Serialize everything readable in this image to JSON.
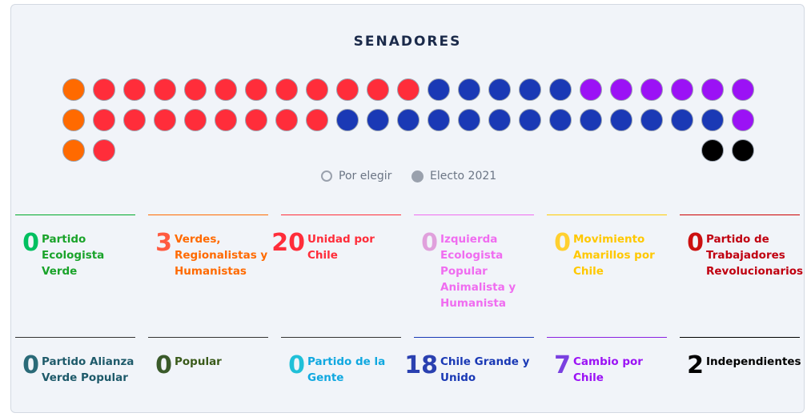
{
  "title": "SENADORES",
  "legend": {
    "pending": "Por elegir",
    "elected": "Electo 2021"
  },
  "seat_rows": [
    [
      [
        "orange",
        1
      ],
      [
        "red",
        11
      ],
      [
        "blue",
        5
      ],
      [
        "purple",
        6
      ]
    ],
    [
      [
        "orange",
        1
      ],
      [
        "red",
        8
      ],
      [
        "blue",
        13
      ],
      [
        "purple",
        1
      ]
    ],
    [
      [
        "orange",
        1
      ],
      [
        "red",
        1
      ],
      [
        "gap",
        19
      ],
      [
        "black",
        2
      ]
    ]
  ],
  "colors": {
    "orange": "#ff6a00",
    "red": "#ff2d3a",
    "blue": "#1a39b5",
    "purple": "#9b12f5",
    "black": "#000000"
  },
  "parties": [
    {
      "count": "0",
      "name": "Partido Ecologista Verde",
      "line": "#00aa2a",
      "num": "#00c060",
      "label": "#1aa32a"
    },
    {
      "count": "3",
      "name": "Verdes, Regionalistas y Humanistas",
      "line": "#ff6a00",
      "num": "#ff5a40",
      "label": "#ff6a00"
    },
    {
      "count": "20",
      "name": "Unidad por Chile",
      "line": "#ff2d3a",
      "num": "#ff2d3a",
      "label": "#ff2d3a"
    },
    {
      "count": "0",
      "name": "Izquierda Ecologista Popular Animalista y Humanista",
      "line": "#f06cf0",
      "num": "#e0a0dc",
      "label": "#f06cf0"
    },
    {
      "count": "0",
      "name": "Movimiento Amarillos por Chile",
      "line": "#ffcc00",
      "num": "#ffd030",
      "label": "#ffc800"
    },
    {
      "count": "0",
      "name": "Partido de Trabajadores Revolucionarios",
      "line": "#cc0000",
      "num": "#cc1010",
      "label": "#c00010"
    },
    {
      "count": "0",
      "name": "Partido Alianza Verde Popular",
      "line": "#333333",
      "num": "#2a6a78",
      "label": "#1e5a6a"
    },
    {
      "count": "0",
      "name": "Popular",
      "line": "#333333",
      "num": "#3a5a2a",
      "label": "#3a5a1a"
    },
    {
      "count": "0",
      "name": "Partido de la Gente",
      "line": "#333333",
      "num": "#20c0d8",
      "label": "#10a8e0"
    },
    {
      "count": "18",
      "name": "Chile Grande y Unido",
      "line": "#1a39b5",
      "num": "#2a40b0",
      "label": "#1a39b5"
    },
    {
      "count": "7",
      "name": "Cambio por Chile",
      "line": "#8a20e0",
      "num": "#7a40e0",
      "label": "#9b12f5"
    },
    {
      "count": "2",
      "name": "Independientes",
      "line": "#000000",
      "num": "#000000",
      "label": "#000000"
    }
  ]
}
